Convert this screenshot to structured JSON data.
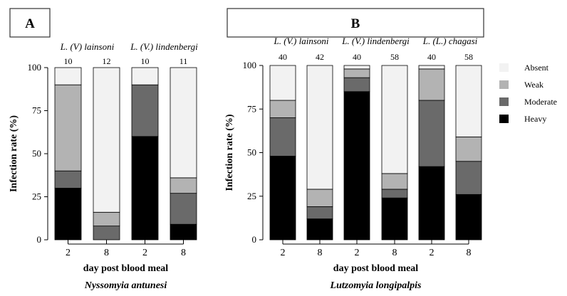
{
  "colors": {
    "Absent": "#f2f2f2",
    "Weak": "#b3b3b3",
    "Moderate": "#6a6a6a",
    "Heavy": "#000000"
  },
  "legend": [
    "Absent",
    "Weak",
    "Moderate",
    "Heavy"
  ],
  "chart_data": [
    {
      "type": "bar",
      "stacked": true,
      "panel": "A",
      "xlabel": "day post blood meal",
      "ylabel": "Infection rate (%)",
      "subtitle": "Nyssomyia antunesi",
      "ylim": [
        0,
        100
      ],
      "yticks": [
        0,
        25,
        50,
        75,
        100
      ],
      "groups": [
        {
          "label": "L. (V) lainsoni",
          "categories": [
            0,
            1
          ]
        },
        {
          "label": "L. (V.) lindenbergi",
          "categories": [
            2,
            3
          ]
        }
      ],
      "categories": [
        "2",
        "8",
        "2",
        "8"
      ],
      "n": [
        "10",
        "12",
        "10",
        "11"
      ],
      "series": [
        {
          "name": "Heavy",
          "values": [
            30,
            0,
            60,
            9
          ]
        },
        {
          "name": "Moderate",
          "values": [
            10,
            8,
            30,
            18
          ]
        },
        {
          "name": "Weak",
          "values": [
            50,
            8,
            0,
            9
          ]
        },
        {
          "name": "Absent",
          "values": [
            10,
            84,
            10,
            64
          ]
        }
      ]
    },
    {
      "type": "bar",
      "stacked": true,
      "panel": "B",
      "xlabel": "day post blood meal",
      "ylabel": "Infection rate (%)",
      "subtitle": "Lutzomyia longipalpis",
      "ylim": [
        0,
        100
      ],
      "yticks": [
        0,
        25,
        50,
        75,
        100
      ],
      "groups": [
        {
          "label": "L. (V.) lainsoni",
          "categories": [
            0,
            1
          ]
        },
        {
          "label": "L. (V.) lindenbergi",
          "categories": [
            2,
            3
          ]
        },
        {
          "label": "L. (L.) chagasi",
          "categories": [
            4,
            5
          ]
        }
      ],
      "categories": [
        "2",
        "8",
        "2",
        "8",
        "2",
        "8"
      ],
      "n": [
        "40",
        "42",
        "40",
        "58",
        "40",
        "58"
      ],
      "series": [
        {
          "name": "Heavy",
          "values": [
            48,
            12,
            85,
            24,
            42,
            26
          ]
        },
        {
          "name": "Moderate",
          "values": [
            22,
            7,
            8,
            5,
            38,
            19
          ]
        },
        {
          "name": "Weak",
          "values": [
            10,
            10,
            5,
            9,
            18,
            14
          ]
        },
        {
          "name": "Absent",
          "values": [
            20,
            71,
            2,
            62,
            2,
            41
          ]
        }
      ]
    }
  ]
}
